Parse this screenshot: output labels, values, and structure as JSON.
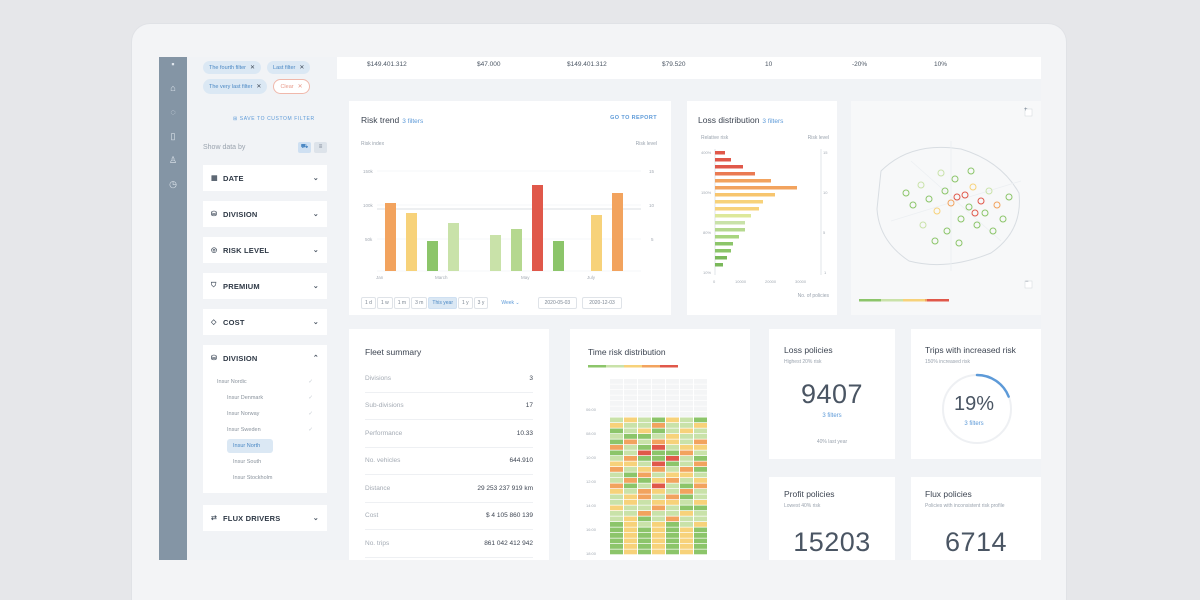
{
  "stats_strip": [
    "$149.401.312",
    "$47.000",
    "$149.401.312",
    "$79.520",
    "10",
    "-20%",
    "10%"
  ],
  "filters": {
    "chips": [
      "The fourth filter",
      "Last filter",
      "The very last filter"
    ],
    "clear_label": "Clear",
    "save_label": "SAVE TO CUSTOM FILTER",
    "show_by_label": "Show data by",
    "sections": [
      {
        "label": "DATE",
        "icon": "calendar-icon"
      },
      {
        "label": "DIVISION",
        "icon": "database-icon"
      },
      {
        "label": "RISK LEVEL",
        "icon": "gauge-icon"
      },
      {
        "label": "PREMIUM",
        "icon": "premium-icon"
      },
      {
        "label": "COST",
        "icon": "tag-icon"
      },
      {
        "label": "DIVISION",
        "icon": "database-icon"
      }
    ],
    "division_items": [
      "Insur Nordic",
      "Insur Denmark",
      "Insur Norway",
      "Insur Sweden",
      "Insur North",
      "Insur South",
      "Insur Stockholm"
    ],
    "last_section": "FLUX DRIVERS"
  },
  "risk_trend": {
    "title": "Risk trend",
    "filters_label": "3 filters",
    "go_report": "GO TO REPORT",
    "left_axis_label": "Risk index",
    "right_axis_label": "Risk level",
    "time_buttons": [
      "1 d",
      "1 w",
      "1 m",
      "3 m",
      "This year",
      "1 y",
      "3 y"
    ],
    "granularity": "Week",
    "date_from": "2020-05-03",
    "date_to": "2020-12-03"
  },
  "loss_distribution": {
    "title": "Loss distribution",
    "filters_label": "3 filters",
    "y_label": "Relative risk",
    "right_label": "Risk level",
    "x_label": "No. of policies"
  },
  "fleet_summary": {
    "title": "Fleet summary",
    "rows": [
      {
        "k": "Divisions",
        "v": "3"
      },
      {
        "k": "Sub-divisions",
        "v": "17"
      },
      {
        "k": "Performance",
        "v": "10.33"
      },
      {
        "k": "No. vehicles",
        "v": "644.910"
      },
      {
        "k": "Distance",
        "v": "29 253 237 919 km"
      },
      {
        "k": "Cost",
        "v": "$ 4 105 860 139"
      },
      {
        "k": "No. trips",
        "v": "861 042 412 942"
      }
    ]
  },
  "time_risk": {
    "title": "Time risk distribution",
    "hours": [
      "06:00",
      "08:00",
      "10:00",
      "12:00",
      "14:00",
      "16:00",
      "18:00",
      "20:00"
    ]
  },
  "loss_policies": {
    "title": "Loss policies",
    "sub": "Highest 20% risk",
    "value": "9407",
    "link": "3 filters",
    "foot": "40% last year"
  },
  "increased_risk": {
    "title": "Trips with increased risk",
    "sub": "150% increased risk",
    "value": "19%",
    "link": "3 filters",
    "progress": 0.19
  },
  "profit_policies": {
    "title": "Profit policies",
    "sub": "Lowest 40% risk",
    "value": "15203"
  },
  "flux_policies": {
    "title": "Flux policies",
    "sub": "Policies with inconsistent risk profile",
    "value": "6714"
  },
  "colors": {
    "rail": "#8495a5",
    "accent": "#5d9ad8",
    "green": "#8cc56a",
    "orange": "#f2a35e",
    "red": "#e0584a",
    "yellow": "#f7d27a"
  }
}
